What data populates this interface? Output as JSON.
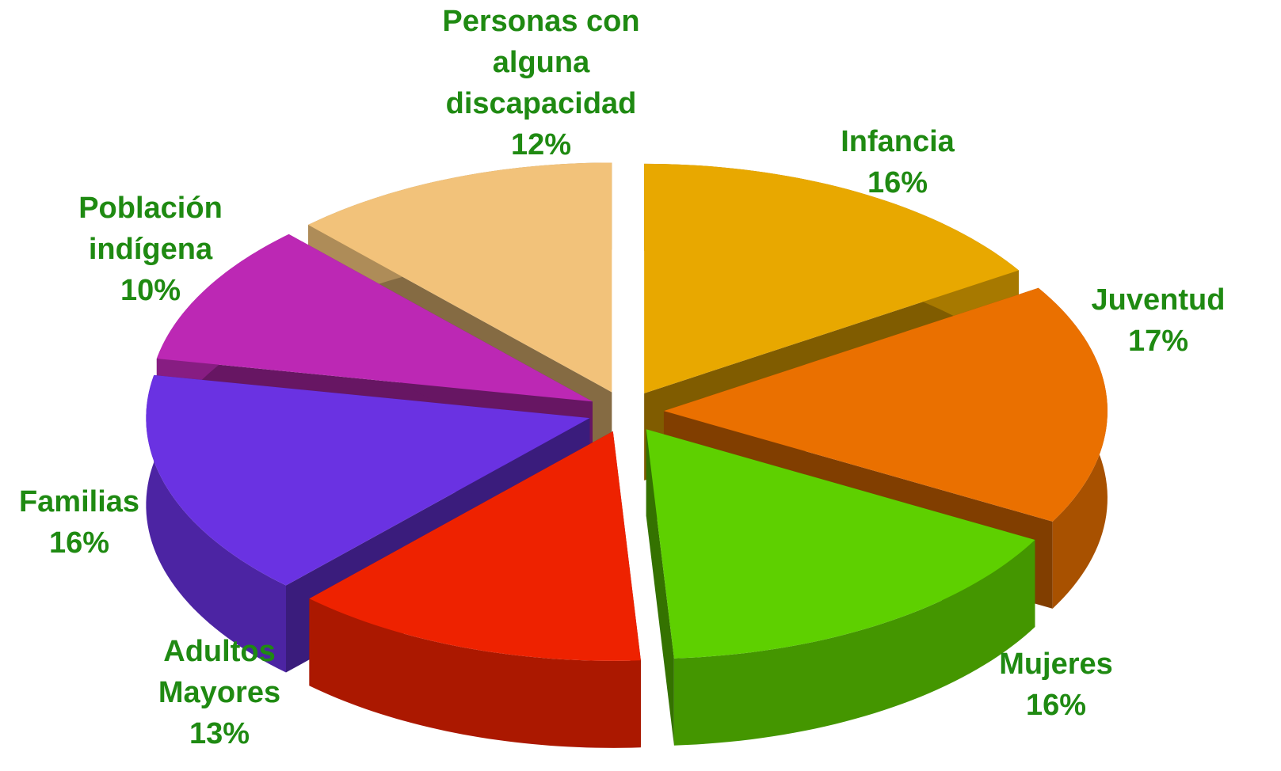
{
  "chart_data": {
    "type": "pie3d",
    "categories": [
      "Infancia",
      "Juventud",
      "Mujeres",
      "Adultos Mayores",
      "Familias",
      "Población indígena",
      "Personas con alguna discapacidad"
    ],
    "values": [
      16,
      17,
      16,
      13,
      16,
      10,
      12
    ],
    "value_labels": [
      "16%",
      "17%",
      "16%",
      "13%",
      "16%",
      "10%",
      "12%"
    ],
    "colors": [
      "#e8a800",
      "#ea7000",
      "#5ed000",
      "#ee2200",
      "#6a32e2",
      "#bc28b4",
      "#f2c27a"
    ]
  }
}
